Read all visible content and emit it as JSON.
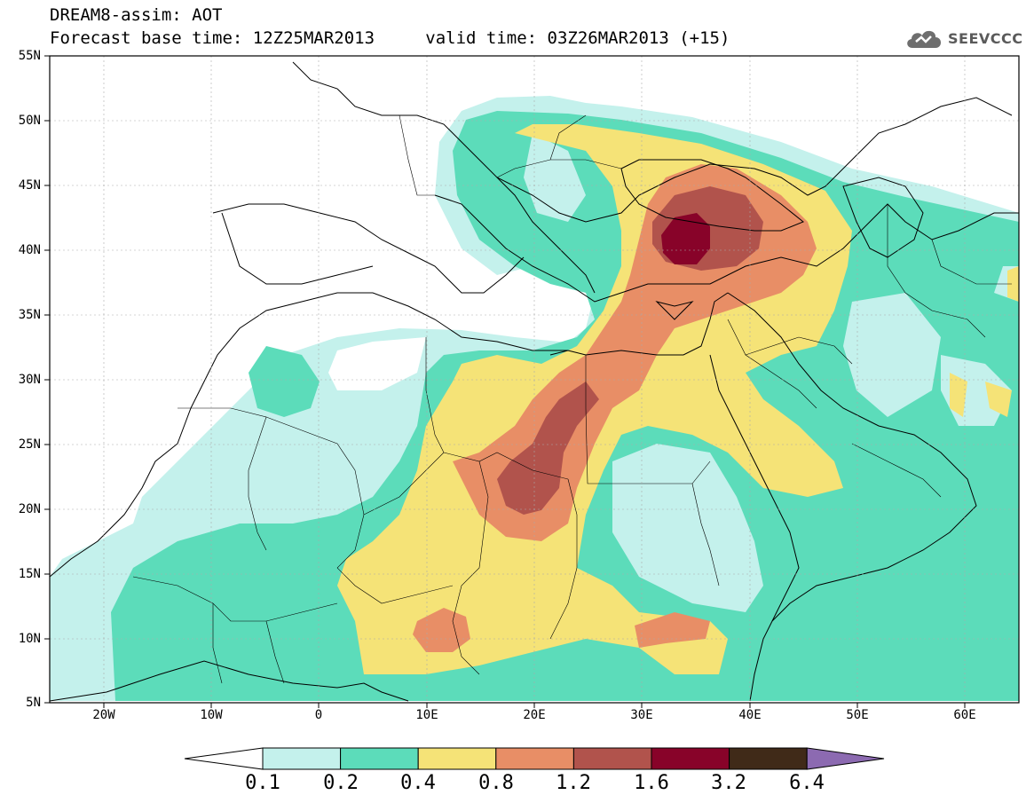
{
  "header": {
    "title": "DREAM8-assim: AOT",
    "base_time_label": "Forecast base time: 12Z25MAR2013",
    "valid_time_label": "valid time: 03Z26MAR2013 (+15)"
  },
  "logo": {
    "text": "SEEVCCC",
    "icon": "cloud-icon"
  },
  "map": {
    "variable": "AOT",
    "lat_labels": [
      "55N",
      "50N",
      "45N",
      "40N",
      "35N",
      "30N",
      "25N",
      "20N",
      "15N",
      "10N",
      "5N"
    ],
    "lon_labels": [
      "20W",
      "10W",
      "0",
      "10E",
      "20E",
      "30E",
      "40E",
      "50E",
      "60E"
    ],
    "lat_range": [
      5,
      55
    ],
    "lon_range": [
      -25,
      65
    ],
    "hotspots": [
      {
        "name": "Black Sea / Anatolia maximum",
        "level": ">1.6"
      },
      {
        "name": "Chad / Libya band",
        "level": "1.2-1.6"
      }
    ]
  },
  "colorbar": {
    "labels": [
      "0.1",
      "0.2",
      "0.4",
      "0.8",
      "1.2",
      "1.6",
      "3.2",
      "6.4"
    ],
    "colors": [
      "#ffffff",
      "#c4f1ec",
      "#5cdcba",
      "#f5e377",
      "#e88e66",
      "#b1534c",
      "#880329",
      "#402a18",
      "#8c6ab1"
    ]
  }
}
